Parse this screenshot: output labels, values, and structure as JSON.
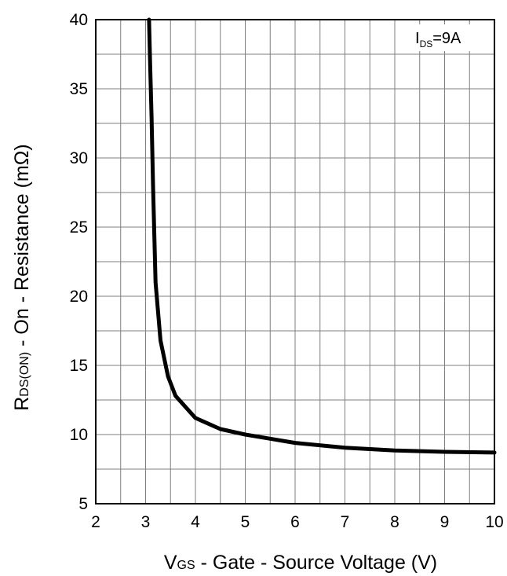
{
  "chart_data": {
    "type": "line",
    "xlabel": {
      "symbol": "V",
      "subscript": "GS",
      "text": " - Gate - Source Voltage (V)"
    },
    "ylabel": {
      "symbol": "R",
      "subscript": "DS(ON)",
      "text": " - On - Resistance (mΩ)"
    },
    "annotation": {
      "symbol": "I",
      "subscript": "DS",
      "text": "=9A"
    },
    "xlim": [
      2,
      10
    ],
    "ylim": [
      5,
      40
    ],
    "x_ticks": [
      2,
      3,
      4,
      5,
      6,
      7,
      8,
      9,
      10
    ],
    "y_ticks": [
      5,
      10,
      15,
      20,
      25,
      30,
      35,
      40
    ],
    "grid": true,
    "series": [
      {
        "x": [
          3.07,
          3.09,
          3.12,
          3.15,
          3.2,
          3.3,
          3.45,
          3.6,
          4.0,
          4.5,
          5.0,
          5.5,
          6.0,
          7.0,
          8.0,
          9.0,
          10.0
        ],
        "y": [
          40,
          37,
          33,
          28,
          21,
          16.8,
          14.2,
          12.8,
          11.2,
          10.4,
          10.0,
          9.7,
          9.4,
          9.05,
          8.85,
          8.75,
          8.7
        ]
      }
    ],
    "colors": {
      "line": "#000000",
      "grid": "#7f7f7f",
      "frame": "#000000"
    }
  }
}
